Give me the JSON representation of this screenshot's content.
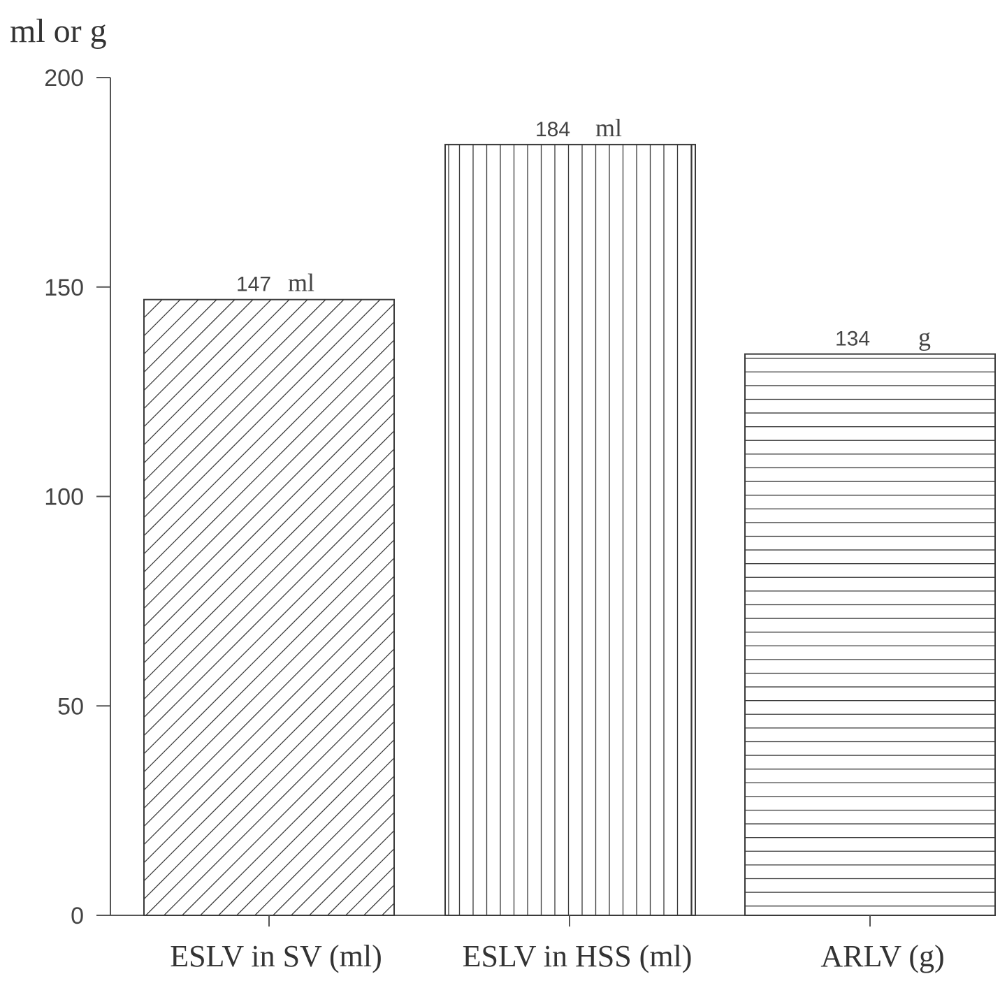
{
  "chart_data": {
    "type": "bar",
    "ylabel": "ml or g",
    "ylim": [
      0,
      200
    ],
    "yticks": [
      0,
      50,
      100,
      150,
      200
    ],
    "categories": [
      "ESLV in SV (ml)",
      "ESLV in HSS (ml)",
      "ARLV (g)"
    ],
    "values": [
      147,
      184,
      134
    ],
    "value_labels": [
      {
        "number": "147",
        "unit": "ml"
      },
      {
        "number": "184",
        "unit": "ml"
      },
      {
        "number": "134",
        "unit": "g"
      }
    ],
    "patterns": [
      "diagonal-hatch",
      "vertical-lines",
      "horizontal-lines"
    ],
    "colors": {
      "stroke": "#3a3a3a",
      "background": "#ffffff",
      "text": "#333333"
    },
    "grid": false,
    "legend": "none"
  }
}
